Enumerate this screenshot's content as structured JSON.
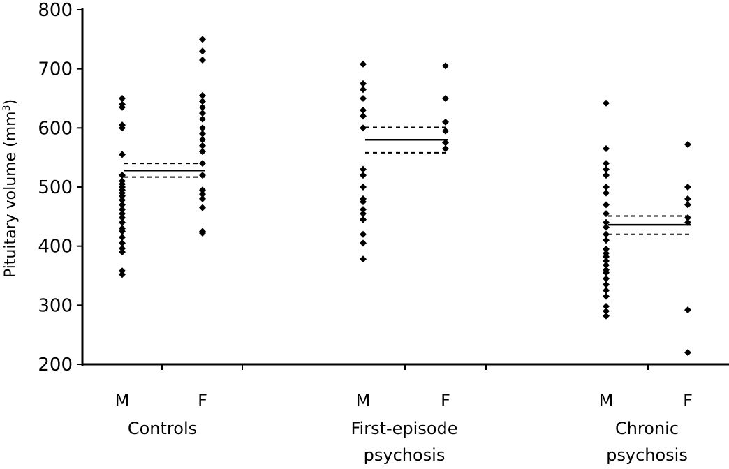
{
  "chart_data": {
    "type": "scatter",
    "ylabel": "Pituitary volume (mm",
    "ylabel_sup": "3",
    "ylabel_close": ")",
    "ylim": [
      200,
      800
    ],
    "yticks": [
      "200",
      "300",
      "400",
      "500",
      "600",
      "700",
      "800"
    ],
    "groups": [
      {
        "name": "Controls",
        "label_lines": [
          "Controls"
        ],
        "subgroups": [
          {
            "name": "M",
            "values": [
              352,
              358,
              390,
              396,
              405,
              415,
              425,
              430,
              440,
              448,
              455,
              462,
              470,
              478,
              485,
              490,
              495,
              500,
              505,
              510,
              520,
              555,
              600,
              605,
              635,
              640,
              650
            ]
          },
          {
            "name": "F",
            "values": [
              422,
              425,
              465,
              480,
              488,
              495,
              520,
              540,
              560,
              570,
              580,
              590,
              600,
              615,
              625,
              635,
              645,
              655,
              715,
              730,
              750
            ]
          }
        ],
        "mean": 528,
        "ci": [
          517,
          540
        ]
      },
      {
        "name": "First-episode psychosis",
        "label_lines": [
          "First-episode",
          "psychosis"
        ],
        "subgroups": [
          {
            "name": "M",
            "values": [
              378,
              405,
              420,
              445,
              455,
              462,
              475,
              480,
              500,
              520,
              530,
              600,
              620,
              630,
              650,
              665,
              675,
              708
            ]
          },
          {
            "name": "F",
            "values": [
              565,
              575,
              595,
              610,
              650,
              705
            ]
          }
        ],
        "mean": 580,
        "ci": [
          558,
          601
        ]
      },
      {
        "name": "Chronic psychosis",
        "label_lines": [
          "Chronic",
          "psychosis"
        ],
        "subgroups": [
          {
            "name": "M",
            "values": [
              282,
              290,
              298,
              315,
              325,
              335,
              345,
              355,
              360,
              368,
              375,
              382,
              388,
              395,
              410,
              420,
              432,
              440,
              455,
              470,
              490,
              500,
              520,
              530,
              540,
              565,
              642
            ]
          },
          {
            "name": "F",
            "values": [
              220,
              292,
              440,
              448,
              470,
              480,
              500,
              572
            ]
          }
        ],
        "mean": 436,
        "ci": [
          420,
          451
        ]
      }
    ],
    "grid": false,
    "legend": "none"
  }
}
